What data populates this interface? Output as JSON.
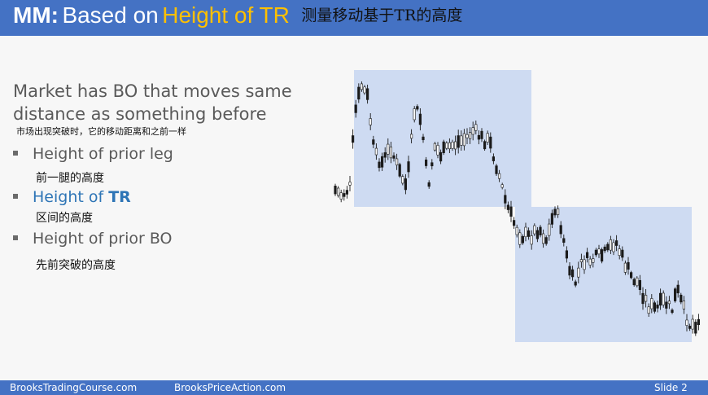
{
  "header": {
    "bold": "MM:",
    "plain": "Based on",
    "accent": "Height of TR",
    "zh": "测量移动基于TR的高度"
  },
  "body": {
    "subtitle": "Market has BO that moves same distance as something before",
    "subtitle_zh": "市场出现突破时，它的移动距离和之前一样",
    "bullets": [
      {
        "prefix": "Height of prior leg",
        "strong": "",
        "zh": "前一腿的高度"
      },
      {
        "prefix": "Height of ",
        "strong": "TR",
        "zh": "区间的高度"
      },
      {
        "prefix": "Height of prior BO",
        "strong": "",
        "zh": "先前突破的高度"
      }
    ]
  },
  "footer": {
    "left": "BrooksTradingCourse.com",
    "middle": "BrooksPriceAction.com",
    "right": "Slide  2"
  },
  "colors": {
    "title_bar": "#4472c4",
    "accent": "#ffc000",
    "highlight_bullet": "#2e75b6",
    "range_box": "#c9d7f1",
    "candle": "#1a1a1a"
  }
}
